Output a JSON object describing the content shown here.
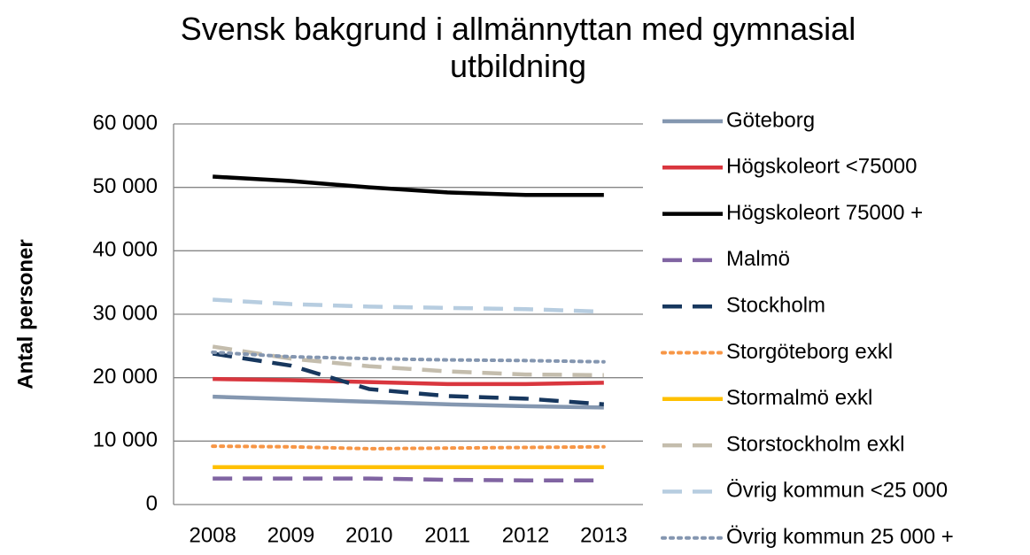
{
  "chart_data": {
    "type": "line",
    "title": "Svensk bakgrund i allmännyttan med gymnasial utbildning",
    "y_label": "Antal personer",
    "categories": [
      "2008",
      "2009",
      "2010",
      "2011",
      "2012",
      "2013"
    ],
    "ylim": [
      0,
      60000
    ],
    "yticks": [
      0,
      {
        "value": 10000,
        "label": "10 000"
      },
      {
        "value": 20000,
        "label": "20 000"
      },
      {
        "value": 30000,
        "label": "30 000"
      },
      {
        "value": 40000,
        "label": "40 000"
      },
      {
        "value": 50000,
        "label": "50 000"
      },
      {
        "value": 60000,
        "label": "60 000"
      }
    ],
    "grid": true,
    "legend": "right",
    "series": [
      {
        "name": "Göteborg",
        "color": "#8497b0",
        "dash": "solid",
        "values": [
          17000,
          16600,
          16200,
          15800,
          15500,
          15300
        ]
      },
      {
        "name": "Högskoleort <75000",
        "color": "#d9363e",
        "dash": "solid",
        "values": [
          19800,
          19600,
          19300,
          19000,
          19000,
          19200
        ]
      },
      {
        "name": "Högskoleort 75000 +",
        "color": "#000000",
        "dash": "solid",
        "values": [
          51700,
          51000,
          50000,
          49200,
          48800,
          48800
        ]
      },
      {
        "name": "Malmö",
        "color": "#8064a2",
        "dash": "dash",
        "values": [
          4100,
          4100,
          4100,
          3900,
          3800,
          3800
        ]
      },
      {
        "name": "Stockholm",
        "color": "#17375e",
        "dash": "dash",
        "values": [
          23800,
          21900,
          18200,
          17100,
          16700,
          15800
        ]
      },
      {
        "name": "Storgöteborg exkl",
        "color": "#f79646",
        "dash": "dot",
        "values": [
          9200,
          9100,
          8800,
          8900,
          9000,
          9100
        ]
      },
      {
        "name": "Stormalmö exkl",
        "color": "#ffc000",
        "dash": "solid",
        "values": [
          5900,
          5900,
          5900,
          5900,
          5900,
          5900
        ]
      },
      {
        "name": "Storstockholm exkl",
        "color": "#c4bdad",
        "dash": "dash",
        "values": [
          24900,
          23000,
          21800,
          21000,
          20500,
          20400
        ]
      },
      {
        "name": "Övrig kommun <25 000",
        "color": "#b7cde0",
        "dash": "dash",
        "values": [
          32300,
          31600,
          31200,
          31000,
          30800,
          30400
        ]
      },
      {
        "name": "Övrig kommun 25 000 +",
        "color": "#8496b0",
        "dash": "dot",
        "values": [
          24000,
          23300,
          23000,
          22800,
          22700,
          22500
        ]
      }
    ]
  }
}
